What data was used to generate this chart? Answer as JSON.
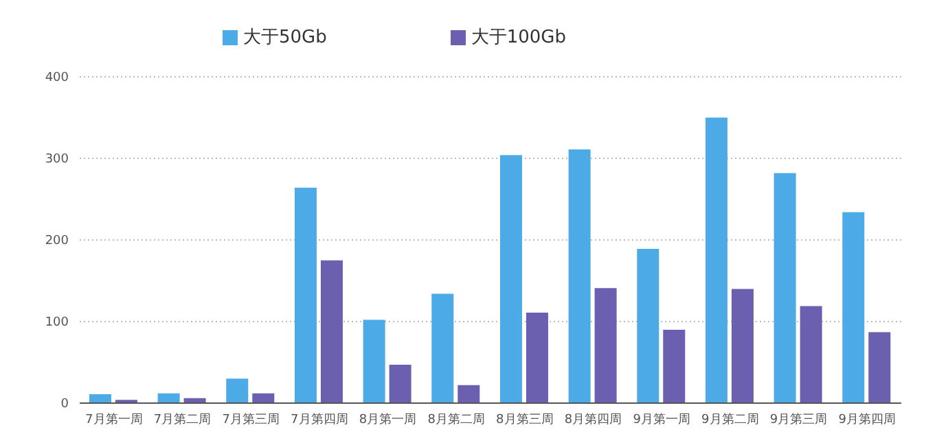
{
  "chart_data": {
    "type": "bar",
    "categories": [
      "7月第一周",
      "7月第二周",
      "7月第三周",
      "7月第四周",
      "8月第一周",
      "8月第二周",
      "8月第三周",
      "8月第四周",
      "9月第一周",
      "9月第二周",
      "9月第三周",
      "9月第四周"
    ],
    "series": [
      {
        "name": "大于50Gb",
        "color": "#4caae6",
        "values": [
          11,
          12,
          30,
          264,
          102,
          134,
          304,
          311,
          189,
          350,
          282,
          234
        ]
      },
      {
        "name": "大于100Gb",
        "color": "#6b5fb0",
        "values": [
          4,
          6,
          12,
          175,
          47,
          22,
          111,
          141,
          90,
          140,
          119,
          87
        ]
      }
    ],
    "ylim": [
      0,
      400
    ],
    "yticks": [
      0,
      100,
      200,
      300,
      400
    ],
    "grid": "y",
    "legend": "top"
  }
}
